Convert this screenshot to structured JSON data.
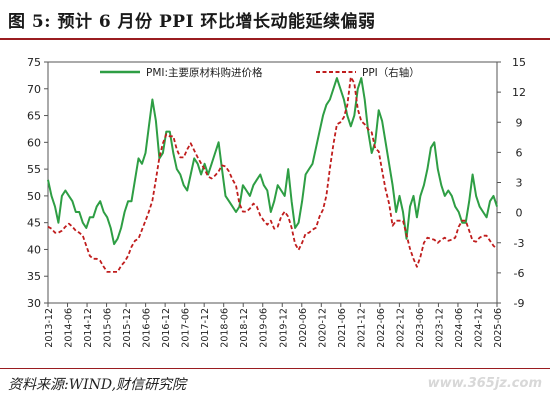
{
  "header": {
    "title": "图 5:  预计 6 月份 PPI 环比增长动能延续偏弱"
  },
  "footer": {
    "source": "资料来源:WIND,财信研究院",
    "watermark": "www.365jz.com"
  },
  "colors": {
    "pmi": "#2e9e44",
    "ppi": "#c01d1d",
    "accent": "#9a1c20"
  },
  "chart_data": {
    "type": "line",
    "xlabel": "",
    "ylabel": "",
    "x_ticks": [
      "2013-12",
      "2014-06",
      "2014-12",
      "2015-06",
      "2015-12",
      "2016-06",
      "2016-12",
      "2017-06",
      "2017-12",
      "2018-06",
      "2018-12",
      "2019-06",
      "2019-12",
      "2020-06",
      "2020-12",
      "2021-06",
      "2021-12",
      "2022-06",
      "2022-12",
      "2023-06",
      "2023-12",
      "2024-06",
      "2024-12",
      "2025-06"
    ],
    "y_left": {
      "ylim": [
        30,
        75
      ],
      "ticks": [
        "30",
        "35",
        "40",
        "45",
        "50",
        "55",
        "60",
        "65",
        "70",
        "75"
      ]
    },
    "y_right": {
      "ylim": [
        -9,
        15
      ],
      "ticks": [
        "-9",
        "-6",
        "-3",
        "0",
        "3",
        "6",
        "9",
        "12",
        "15"
      ]
    },
    "legend": {
      "position": "top",
      "labels": [
        "PMI:主要原材料购进价格",
        "PPI（右轴）"
      ]
    },
    "series": [
      {
        "name": "PMI:主要原材料购进价格",
        "axis": "left",
        "style": "solid",
        "values": [
          53,
          50,
          48,
          45,
          50,
          51,
          50,
          49,
          47,
          47,
          45,
          44,
          46,
          46,
          48,
          49,
          47,
          46,
          44,
          41,
          42,
          44,
          47,
          49,
          49,
          53,
          57,
          56,
          58,
          63,
          68,
          64,
          57,
          58,
          62,
          62,
          58,
          55,
          54,
          52,
          51,
          54,
          57,
          56,
          54,
          56,
          54,
          56,
          58,
          60,
          55,
          50,
          49,
          48,
          47,
          48,
          52,
          51,
          50,
          52,
          53,
          54,
          52,
          51,
          47,
          49,
          52,
          51,
          50,
          55,
          49,
          44,
          45,
          49,
          54,
          55,
          56,
          59,
          62,
          65,
          67,
          68,
          70,
          72,
          70,
          68,
          65,
          63,
          65,
          70,
          72,
          68,
          62,
          58,
          60,
          66,
          64,
          60,
          56,
          52,
          47,
          50,
          47,
          42,
          48,
          50,
          46,
          50,
          52,
          55,
          59,
          60,
          55,
          52,
          50,
          51,
          50,
          48,
          47,
          45,
          45,
          49,
          54,
          50,
          48,
          47,
          46,
          49,
          50,
          48
        ]
      },
      {
        "name": "PPI（右轴）",
        "axis": "right",
        "style": "dashed",
        "values": [
          -1.4,
          -1.6,
          -2.0,
          -2.0,
          -1.8,
          -1.4,
          -1.1,
          -1.4,
          -1.8,
          -2.0,
          -2.3,
          -3.3,
          -4.3,
          -4.6,
          -4.6,
          -4.8,
          -5.4,
          -5.9,
          -5.9,
          -5.9,
          -5.9,
          -5.3,
          -4.9,
          -4.3,
          -3.4,
          -2.8,
          -2.6,
          -1.7,
          -0.8,
          0.1,
          1.2,
          3.3,
          5.5,
          6.9,
          7.8,
          7.6,
          7.6,
          6.3,
          5.5,
          5.5,
          6.3,
          6.9,
          6.2,
          5.5,
          4.9,
          4.3,
          3.6,
          3.4,
          3.7,
          4.1,
          4.7,
          4.6,
          4.1,
          3.3,
          2.7,
          0.9,
          0.1,
          0.1,
          0.4,
          0.9,
          0.6,
          -0.3,
          -0.8,
          -1.2,
          -0.8,
          -1.6,
          -1.4,
          -0.4,
          0.1,
          -0.4,
          -1.5,
          -3.1,
          -3.7,
          -3.0,
          -2.1,
          -2.0,
          -1.7,
          -1.5,
          -0.4,
          0.3,
          1.7,
          4.4,
          6.8,
          8.8,
          9.0,
          9.5,
          10.7,
          13.5,
          12.9,
          10.3,
          9.1,
          8.8,
          8.3,
          8.0,
          6.4,
          6.1,
          4.2,
          2.3,
          0.9,
          -1.3,
          -0.8,
          -0.8,
          -0.8,
          -2.2,
          -3.6,
          -4.6,
          -5.4,
          -4.4,
          -3.0,
          -2.5,
          -2.6,
          -2.7,
          -3.0,
          -2.7,
          -2.5,
          -2.8,
          -2.7,
          -2.5,
          -1.4,
          -0.8,
          -0.8,
          -1.8,
          -2.8,
          -2.9,
          -2.5,
          -2.3,
          -2.3,
          -2.8,
          -3.3,
          -3.6
        ]
      }
    ]
  }
}
